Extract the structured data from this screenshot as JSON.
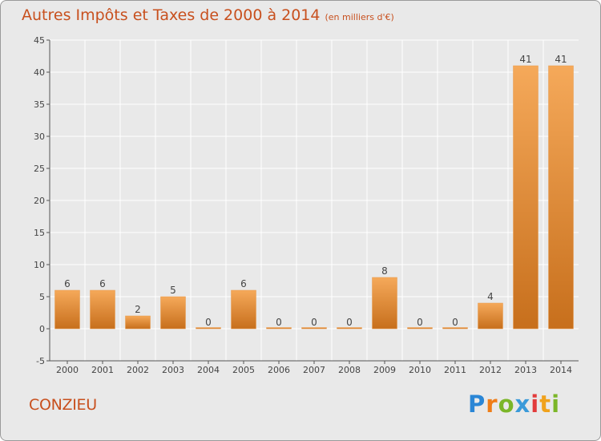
{
  "header": {
    "title": "Autres Impôts et Taxes de 2000 à 2014",
    "unit": "(en milliers d'€)"
  },
  "footer": {
    "city": "CONZIEU",
    "logo_letters": [
      {
        "ch": "P",
        "color": "#2a86d6"
      },
      {
        "ch": "r",
        "color": "#ef7d18"
      },
      {
        "ch": "o",
        "color": "#7bb628"
      },
      {
        "ch": "x",
        "color": "#3a9ad9"
      },
      {
        "ch": "i",
        "color": "#e23b3b"
      },
      {
        "ch": "t",
        "color": "#f0a21c"
      },
      {
        "ch": "i",
        "color": "#7bb628"
      }
    ]
  },
  "colors": {
    "accent": "#c8501e",
    "bar_light": "#f5a95a",
    "bar_dark": "#c76f1c",
    "grid": "#ffffff"
  },
  "chart_data": {
    "type": "bar",
    "categories": [
      "2000",
      "2001",
      "2002",
      "2003",
      "2004",
      "2005",
      "2006",
      "2007",
      "2008",
      "2009",
      "2010",
      "2011",
      "2012",
      "2013",
      "2014"
    ],
    "values": [
      6,
      6,
      2,
      5,
      0,
      6,
      0,
      0,
      0,
      8,
      0,
      0,
      4,
      41,
      41
    ],
    "ylim": [
      -5,
      45
    ],
    "yticks": [
      -5,
      0,
      5,
      10,
      15,
      20,
      25,
      30,
      35,
      40,
      45
    ],
    "grid": true,
    "xlabel": "",
    "ylabel": ""
  }
}
